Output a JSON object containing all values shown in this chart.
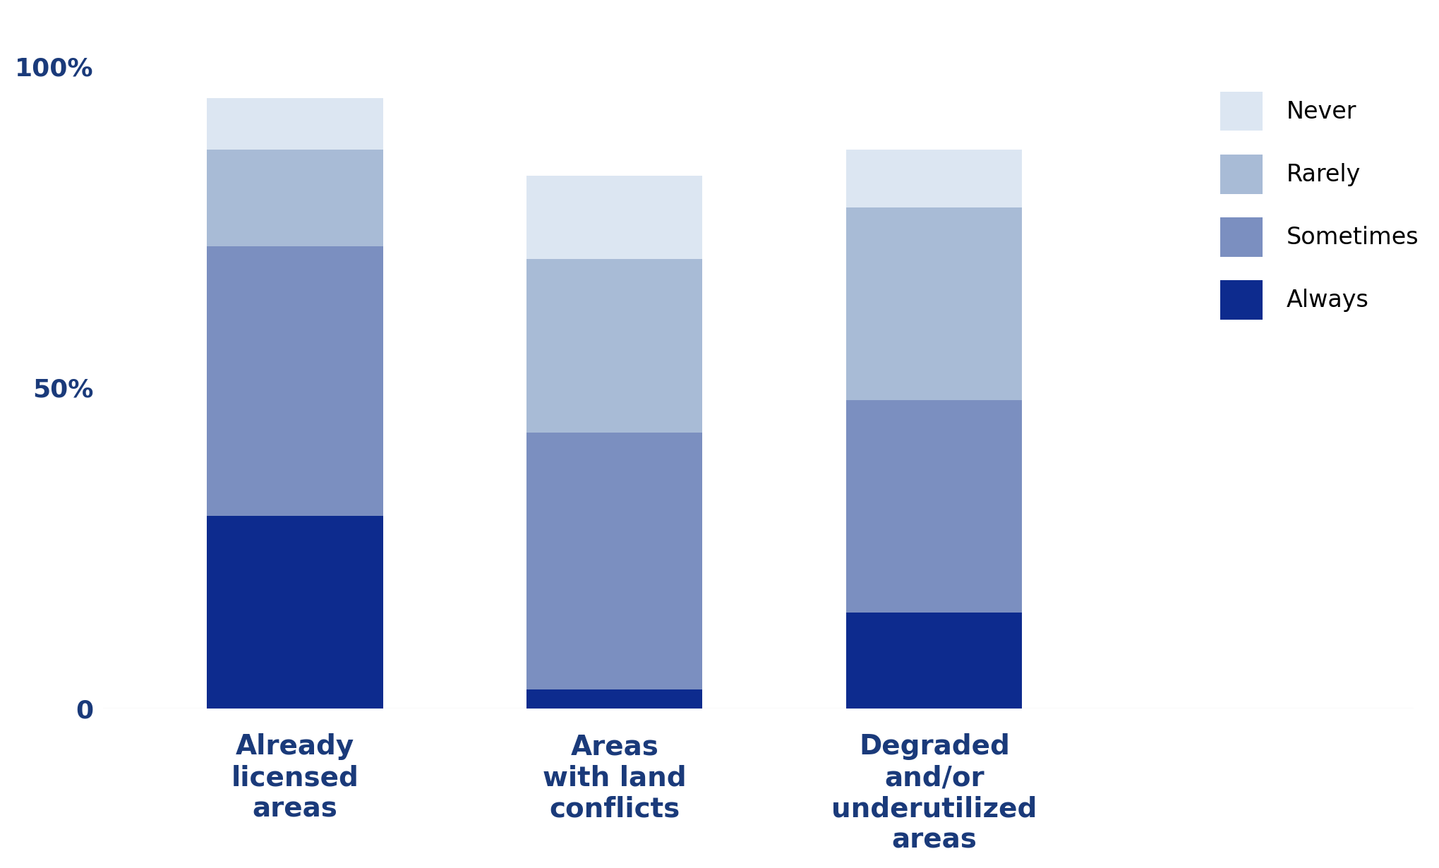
{
  "categories": [
    "Already\nlicensed\nareas",
    "Areas\nwith land\nconflicts",
    "Degraded\nand/or\nunderutilized\nareas"
  ],
  "series": {
    "Always": [
      30,
      3,
      15
    ],
    "Sometimes": [
      42,
      40,
      33
    ],
    "Rarely": [
      15,
      27,
      30
    ],
    "Never": [
      8,
      13,
      9
    ]
  },
  "colors": {
    "Always": "#0d2b8e",
    "Sometimes": "#7b8fc0",
    "Rarely": "#a8bbd6",
    "Never": "#dce6f2"
  },
  "legend_order": [
    "Never",
    "Rarely",
    "Sometimes",
    "Always"
  ],
  "yticks": [
    0,
    50,
    100
  ],
  "ytick_labels": [
    "0",
    "50%",
    "100%"
  ],
  "bar_width": 0.55,
  "title_color": "#1a3a7a",
  "label_color": "#1a3a7a",
  "legend_fontsize": 24,
  "tick_fontsize": 26,
  "xlabel_fontsize": 28,
  "background_color": "#ffffff"
}
